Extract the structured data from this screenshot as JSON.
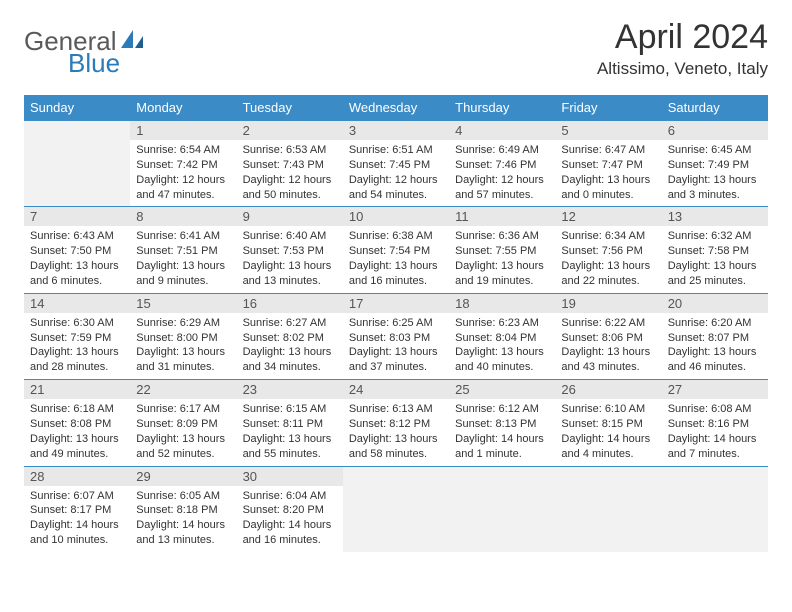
{
  "brand": {
    "part1": "General",
    "part2": "Blue"
  },
  "title": "April 2024",
  "location": "Altissimo, Veneto, Italy",
  "weekdays": [
    "Sunday",
    "Monday",
    "Tuesday",
    "Wednesday",
    "Thursday",
    "Friday",
    "Saturday"
  ],
  "colors": {
    "header_bg": "#3b8bc7",
    "header_text": "#ffffff",
    "daynum_bg": "#e8e8e8",
    "empty_bg": "#f2f2f2",
    "rule": "#3b8bc7",
    "logo_gray": "#5a5a5a",
    "logo_blue": "#2b7bb9"
  },
  "start_weekday": 1,
  "days": [
    {
      "n": "1",
      "sunrise": "Sunrise: 6:54 AM",
      "sunset": "Sunset: 7:42 PM",
      "daylight": "Daylight: 12 hours and 47 minutes."
    },
    {
      "n": "2",
      "sunrise": "Sunrise: 6:53 AM",
      "sunset": "Sunset: 7:43 PM",
      "daylight": "Daylight: 12 hours and 50 minutes."
    },
    {
      "n": "3",
      "sunrise": "Sunrise: 6:51 AM",
      "sunset": "Sunset: 7:45 PM",
      "daylight": "Daylight: 12 hours and 54 minutes."
    },
    {
      "n": "4",
      "sunrise": "Sunrise: 6:49 AM",
      "sunset": "Sunset: 7:46 PM",
      "daylight": "Daylight: 12 hours and 57 minutes."
    },
    {
      "n": "5",
      "sunrise": "Sunrise: 6:47 AM",
      "sunset": "Sunset: 7:47 PM",
      "daylight": "Daylight: 13 hours and 0 minutes."
    },
    {
      "n": "6",
      "sunrise": "Sunrise: 6:45 AM",
      "sunset": "Sunset: 7:49 PM",
      "daylight": "Daylight: 13 hours and 3 minutes."
    },
    {
      "n": "7",
      "sunrise": "Sunrise: 6:43 AM",
      "sunset": "Sunset: 7:50 PM",
      "daylight": "Daylight: 13 hours and 6 minutes."
    },
    {
      "n": "8",
      "sunrise": "Sunrise: 6:41 AM",
      "sunset": "Sunset: 7:51 PM",
      "daylight": "Daylight: 13 hours and 9 minutes."
    },
    {
      "n": "9",
      "sunrise": "Sunrise: 6:40 AM",
      "sunset": "Sunset: 7:53 PM",
      "daylight": "Daylight: 13 hours and 13 minutes."
    },
    {
      "n": "10",
      "sunrise": "Sunrise: 6:38 AM",
      "sunset": "Sunset: 7:54 PM",
      "daylight": "Daylight: 13 hours and 16 minutes."
    },
    {
      "n": "11",
      "sunrise": "Sunrise: 6:36 AM",
      "sunset": "Sunset: 7:55 PM",
      "daylight": "Daylight: 13 hours and 19 minutes."
    },
    {
      "n": "12",
      "sunrise": "Sunrise: 6:34 AM",
      "sunset": "Sunset: 7:56 PM",
      "daylight": "Daylight: 13 hours and 22 minutes."
    },
    {
      "n": "13",
      "sunrise": "Sunrise: 6:32 AM",
      "sunset": "Sunset: 7:58 PM",
      "daylight": "Daylight: 13 hours and 25 minutes."
    },
    {
      "n": "14",
      "sunrise": "Sunrise: 6:30 AM",
      "sunset": "Sunset: 7:59 PM",
      "daylight": "Daylight: 13 hours and 28 minutes."
    },
    {
      "n": "15",
      "sunrise": "Sunrise: 6:29 AM",
      "sunset": "Sunset: 8:00 PM",
      "daylight": "Daylight: 13 hours and 31 minutes."
    },
    {
      "n": "16",
      "sunrise": "Sunrise: 6:27 AM",
      "sunset": "Sunset: 8:02 PM",
      "daylight": "Daylight: 13 hours and 34 minutes."
    },
    {
      "n": "17",
      "sunrise": "Sunrise: 6:25 AM",
      "sunset": "Sunset: 8:03 PM",
      "daylight": "Daylight: 13 hours and 37 minutes."
    },
    {
      "n": "18",
      "sunrise": "Sunrise: 6:23 AM",
      "sunset": "Sunset: 8:04 PM",
      "daylight": "Daylight: 13 hours and 40 minutes."
    },
    {
      "n": "19",
      "sunrise": "Sunrise: 6:22 AM",
      "sunset": "Sunset: 8:06 PM",
      "daylight": "Daylight: 13 hours and 43 minutes."
    },
    {
      "n": "20",
      "sunrise": "Sunrise: 6:20 AM",
      "sunset": "Sunset: 8:07 PM",
      "daylight": "Daylight: 13 hours and 46 minutes."
    },
    {
      "n": "21",
      "sunrise": "Sunrise: 6:18 AM",
      "sunset": "Sunset: 8:08 PM",
      "daylight": "Daylight: 13 hours and 49 minutes."
    },
    {
      "n": "22",
      "sunrise": "Sunrise: 6:17 AM",
      "sunset": "Sunset: 8:09 PM",
      "daylight": "Daylight: 13 hours and 52 minutes."
    },
    {
      "n": "23",
      "sunrise": "Sunrise: 6:15 AM",
      "sunset": "Sunset: 8:11 PM",
      "daylight": "Daylight: 13 hours and 55 minutes."
    },
    {
      "n": "24",
      "sunrise": "Sunrise: 6:13 AM",
      "sunset": "Sunset: 8:12 PM",
      "daylight": "Daylight: 13 hours and 58 minutes."
    },
    {
      "n": "25",
      "sunrise": "Sunrise: 6:12 AM",
      "sunset": "Sunset: 8:13 PM",
      "daylight": "Daylight: 14 hours and 1 minute."
    },
    {
      "n": "26",
      "sunrise": "Sunrise: 6:10 AM",
      "sunset": "Sunset: 8:15 PM",
      "daylight": "Daylight: 14 hours and 4 minutes."
    },
    {
      "n": "27",
      "sunrise": "Sunrise: 6:08 AM",
      "sunset": "Sunset: 8:16 PM",
      "daylight": "Daylight: 14 hours and 7 minutes."
    },
    {
      "n": "28",
      "sunrise": "Sunrise: 6:07 AM",
      "sunset": "Sunset: 8:17 PM",
      "daylight": "Daylight: 14 hours and 10 minutes."
    },
    {
      "n": "29",
      "sunrise": "Sunrise: 6:05 AM",
      "sunset": "Sunset: 8:18 PM",
      "daylight": "Daylight: 14 hours and 13 minutes."
    },
    {
      "n": "30",
      "sunrise": "Sunrise: 6:04 AM",
      "sunset": "Sunset: 8:20 PM",
      "daylight": "Daylight: 14 hours and 16 minutes."
    }
  ]
}
